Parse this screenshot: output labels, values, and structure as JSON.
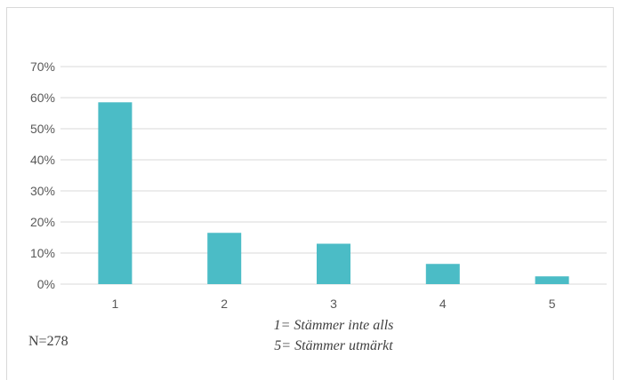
{
  "chart_data": {
    "type": "bar",
    "categories": [
      "1",
      "2",
      "3",
      "4",
      "5"
    ],
    "values": [
      58.5,
      16.5,
      13,
      6.5,
      2.5
    ],
    "ylim": [
      0,
      70
    ],
    "yticks": [
      "0%",
      "10%",
      "20%",
      "30%",
      "40%",
      "50%",
      "60%",
      "70%"
    ],
    "ytick_values": [
      0,
      10,
      20,
      30,
      40,
      50,
      60,
      70
    ],
    "grid": true,
    "legend": "none",
    "bar_color": "#4BBCC6"
  },
  "footer": {
    "n_label": "N=278",
    "note_line1": "1= Stämmer inte alls",
    "note_line2": "5= Stämmer utmärkt"
  }
}
